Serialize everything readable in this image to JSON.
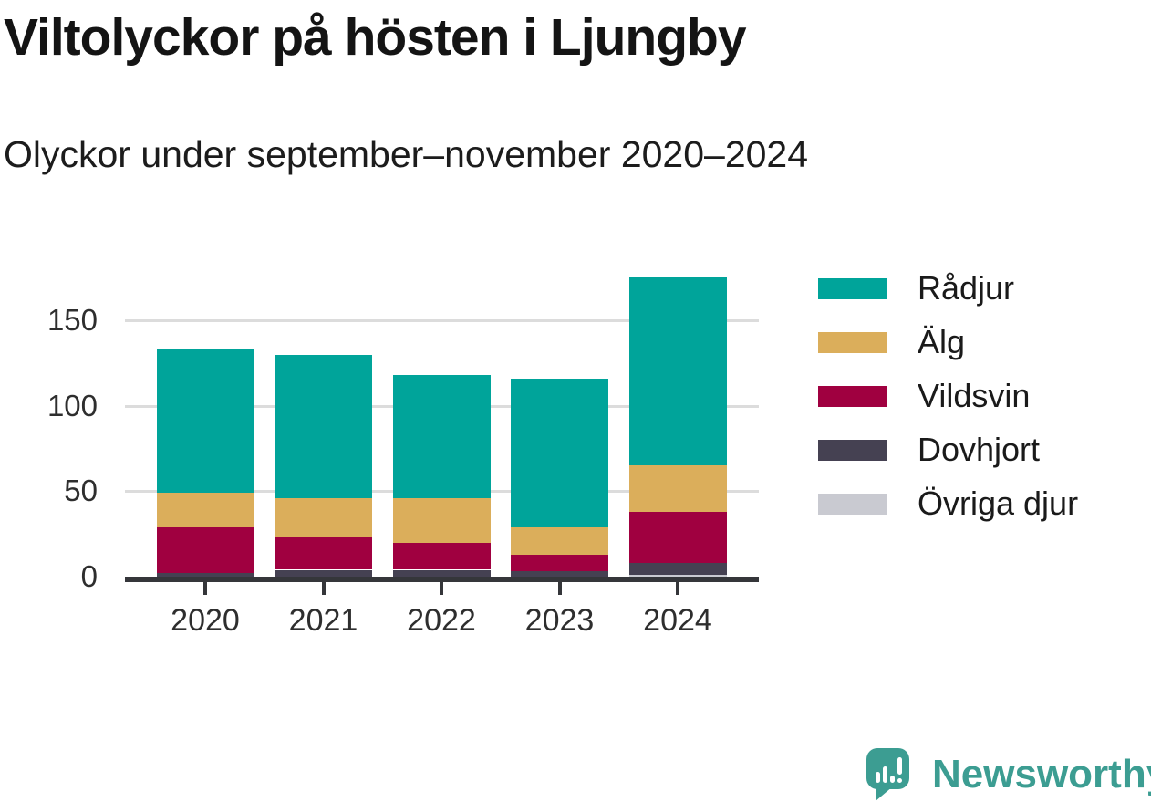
{
  "header": {
    "title": "Viltolyckor på hösten i Ljungby",
    "subtitle": "Olyckor under september–november 2020–2024"
  },
  "chart_data": {
    "type": "bar",
    "stacked": true,
    "title": "Viltolyckor på hösten i Ljungby",
    "subtitle": "Olyckor under september–november 2020–2024",
    "categories": [
      "2020",
      "2021",
      "2022",
      "2023",
      "2024"
    ],
    "series": [
      {
        "name": "Rådjur",
        "color": "#00a49a",
        "values": [
          84,
          84,
          72,
          87,
          110
        ]
      },
      {
        "name": "Älg",
        "color": "#dbae5b",
        "values": [
          20,
          23,
          26,
          16,
          27
        ]
      },
      {
        "name": "Vildsvin",
        "color": "#a00040",
        "values": [
          27,
          19,
          16,
          10,
          30
        ]
      },
      {
        "name": "Dovhjort",
        "color": "#454152",
        "values": [
          2,
          4,
          4,
          3,
          7
        ]
      },
      {
        "name": "Övriga djur",
        "color": "#c9cad1",
        "values": [
          0,
          0,
          0,
          0,
          1
        ]
      }
    ],
    "stack_order_bottom_to_top": [
      "Övriga djur",
      "Dovhjort",
      "Vildsvin",
      "Älg",
      "Rådjur"
    ],
    "totals": [
      133,
      130,
      118,
      116,
      175
    ],
    "xlabel": "",
    "ylabel": "",
    "yticks": [
      0,
      50,
      100,
      150
    ],
    "gridlines_at": [
      50,
      100,
      150
    ],
    "ylim": [
      0,
      186
    ],
    "grid": true,
    "legend_position": "right",
    "colors": {
      "grid": "#dcdcdc",
      "axis": "#35363a",
      "tick_text": "#2e2e2e"
    }
  },
  "footer": {
    "brand": "Newsworthy",
    "logo_icon": "newsworthy-chart-bubble-icon",
    "brand_color": "#3c9d92"
  }
}
